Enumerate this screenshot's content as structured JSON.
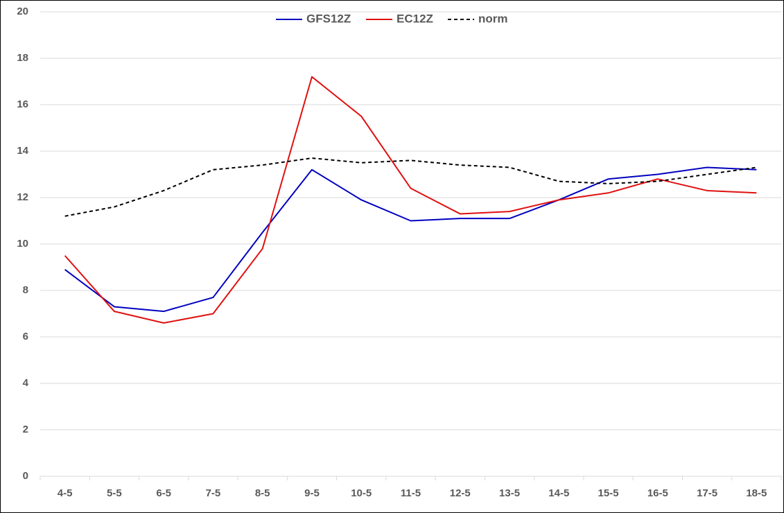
{
  "chart_data": {
    "type": "line",
    "categories": [
      "4-5",
      "5-5",
      "6-5",
      "7-5",
      "8-5",
      "9-5",
      "10-5",
      "11-5",
      "12-5",
      "13-5",
      "14-5",
      "15-5",
      "16-5",
      "17-5",
      "18-5"
    ],
    "series": [
      {
        "name": "GFS12Z",
        "color": "#0000c0",
        "dashed": false,
        "values": [
          8.9,
          7.3,
          7.1,
          7.7,
          10.5,
          13.2,
          11.9,
          11.0,
          11.1,
          11.1,
          11.9,
          12.8,
          13.0,
          13.3,
          13.2
        ]
      },
      {
        "name": "EC12Z",
        "color": "#e01010",
        "dashed": false,
        "values": [
          9.5,
          7.1,
          6.6,
          7.0,
          9.8,
          17.2,
          15.5,
          12.4,
          11.3,
          11.4,
          11.9,
          12.2,
          12.8,
          12.3,
          12.2
        ]
      },
      {
        "name": "norm",
        "color": "#000000",
        "dashed": true,
        "values": [
          11.2,
          11.6,
          12.3,
          13.2,
          13.4,
          13.7,
          13.5,
          13.6,
          13.4,
          13.3,
          12.7,
          12.6,
          12.7,
          13.0,
          13.3
        ]
      }
    ],
    "ylim": [
      0,
      20
    ],
    "yticks": [
      0,
      2,
      4,
      6,
      8,
      10,
      12,
      14,
      16,
      18,
      20
    ],
    "grid": true,
    "legend": "top"
  }
}
